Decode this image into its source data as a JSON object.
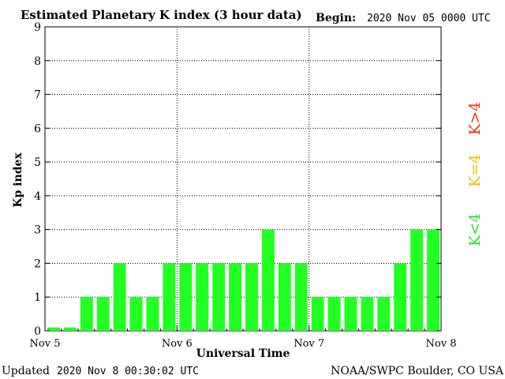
{
  "chart_data": {
    "type": "bar",
    "title": "Estimated Planetary K index (3 hour data)",
    "begin_label": "Begin:",
    "begin_value": "2020 Nov 05 0000 UTC",
    "xlabel": "Universal Time",
    "ylabel": "Kp index",
    "ylim": [
      0,
      9
    ],
    "yticks": [
      0,
      1,
      2,
      3,
      4,
      5,
      6,
      7,
      8,
      9
    ],
    "xticks": [
      "Nov 5",
      "Nov 6",
      "Nov 7",
      "Nov 8"
    ],
    "values": [
      0.1,
      0.1,
      1,
      1,
      2,
      1,
      1,
      2,
      2,
      2,
      2,
      2,
      2,
      3,
      2,
      2,
      1,
      1,
      1,
      1,
      1,
      2,
      3,
      3
    ],
    "bar_color": "#22ff22",
    "grid": "dotted",
    "legend": [
      {
        "label": "K<4",
        "color": "#33dd33"
      },
      {
        "label": "K=4",
        "color": "#f0c000"
      },
      {
        "label": "K>4",
        "color": "#ee3311"
      }
    ],
    "legend_placement": "right"
  },
  "footer": {
    "updated_label": "Updated",
    "updated_value": "2020 Nov  8 00:30:02 UTC",
    "credit": "NOAA/SWPC Boulder, CO USA"
  }
}
